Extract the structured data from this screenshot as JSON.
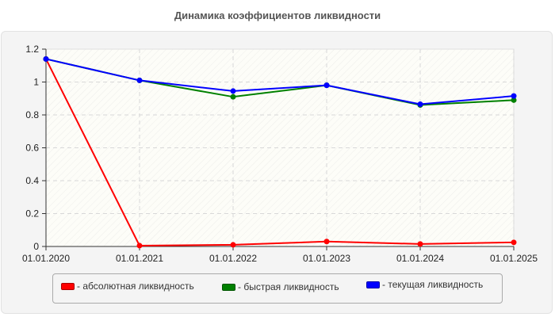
{
  "chart_data": {
    "type": "line",
    "title": "Динамика коэффициентов ликвидности",
    "xlabel": "",
    "ylabel": "",
    "categories": [
      "01.01.2020",
      "01.01.2021",
      "01.01.2022",
      "01.01.2023",
      "01.01.2024",
      "01.01.2025"
    ],
    "ylim": [
      0,
      1.2
    ],
    "yticks": [
      0,
      0.2,
      0.4,
      0.6,
      0.8,
      1,
      1.2
    ],
    "ytick_labels": [
      "0",
      "0.2",
      "0.4",
      "0.6",
      "0.8",
      "1",
      "1.2"
    ],
    "grid": true,
    "legend_position": "bottom",
    "series": [
      {
        "name": "- абсолютная ликвидность",
        "color": "#ff0000",
        "values": [
          1.14,
          0.005,
          0.01,
          0.03,
          0.015,
          0.025
        ]
      },
      {
        "name": "- быстрая ликвидность",
        "color": "#008000",
        "values": [
          1.14,
          1.01,
          0.91,
          0.98,
          0.86,
          0.89
        ]
      },
      {
        "name": "- текущая ликвидность",
        "color": "#0000ff",
        "values": [
          1.14,
          1.01,
          0.945,
          0.98,
          0.865,
          0.915
        ]
      }
    ]
  }
}
